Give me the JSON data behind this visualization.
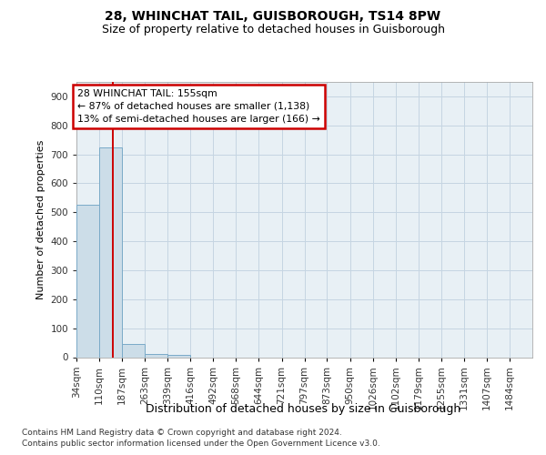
{
  "title1": "28, WHINCHAT TAIL, GUISBOROUGH, TS14 8PW",
  "title2": "Size of property relative to detached houses in Guisborough",
  "xlabel": "Distribution of detached houses by size in Guisborough",
  "ylabel": "Number of detached properties",
  "footnote1": "Contains HM Land Registry data © Crown copyright and database right 2024.",
  "footnote2": "Contains public sector information licensed under the Open Government Licence v3.0.",
  "annotation_title": "28 WHINCHAT TAIL: 155sqm",
  "annotation_line1": "← 87% of detached houses are smaller (1,138)",
  "annotation_line2": "13% of semi-detached houses are larger (166) →",
  "bin_edges": [
    34,
    110,
    187,
    263,
    339,
    416,
    492,
    568,
    644,
    721,
    797,
    873,
    950,
    1026,
    1102,
    1179,
    1255,
    1331,
    1407,
    1484,
    1560
  ],
  "bin_values": [
    525,
    725,
    45,
    12,
    8,
    0,
    0,
    0,
    0,
    0,
    0,
    0,
    0,
    0,
    0,
    0,
    0,
    0,
    0,
    0
  ],
  "bar_color": "#ccdde8",
  "bar_edge_color": "#7aaac8",
  "grid_color": "#c5d5e2",
  "vline_color": "#cc0000",
  "vline_x": 155,
  "ylim": [
    0,
    950
  ],
  "yticks": [
    0,
    100,
    200,
    300,
    400,
    500,
    600,
    700,
    800,
    900
  ],
  "background_color": "#e8f0f5",
  "annotation_box_color": "#cc0000",
  "title1_fontsize": 10,
  "title2_fontsize": 9,
  "ylabel_fontsize": 8,
  "xlabel_fontsize": 9,
  "tick_fontsize": 7.5,
  "footnote_fontsize": 6.5
}
